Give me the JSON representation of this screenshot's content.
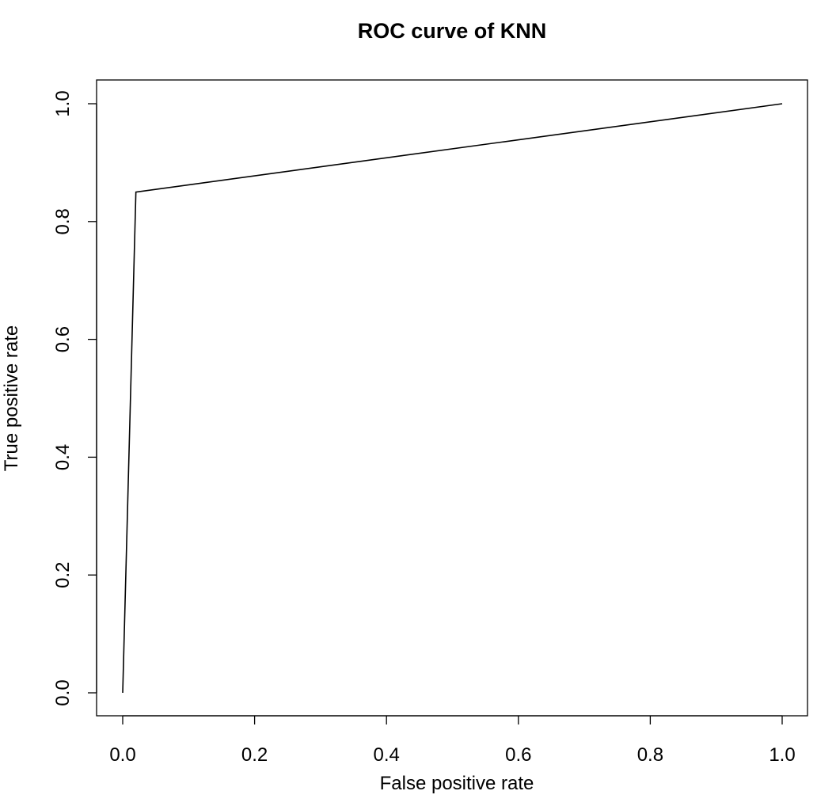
{
  "chart_data": {
    "type": "line",
    "title": "ROC curve of KNN",
    "xlabel": "False positive rate",
    "ylabel": "True positive rate",
    "xlim": [
      0,
      1
    ],
    "ylim": [
      0,
      1
    ],
    "x_ticks": [
      "0.0",
      "0.2",
      "0.4",
      "0.6",
      "0.8",
      "1.0"
    ],
    "y_ticks": [
      "0.0",
      "0.2",
      "0.4",
      "0.6",
      "0.8",
      "1.0"
    ],
    "grid": false,
    "legend": "none",
    "line_color": "#000000",
    "series": [
      {
        "x": [
          0.0,
          0.02,
          1.0
        ],
        "y": [
          0.0,
          0.85,
          1.0
        ]
      }
    ]
  }
}
